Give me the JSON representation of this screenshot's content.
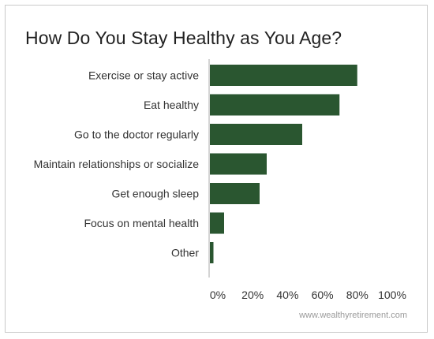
{
  "chart_data": {
    "type": "bar",
    "orientation": "horizontal",
    "title": "How Do You Stay Healthy as You Age?",
    "categories": [
      "Exercise or stay active",
      "Eat healthy",
      "Go to the doctor regularly",
      "Maintain relationships or socialize",
      "Get enough sleep",
      "Focus on mental health",
      "Other"
    ],
    "values": [
      83,
      73,
      52,
      32,
      28,
      8,
      2
    ],
    "x_ticks": [
      "0%",
      "20%",
      "40%",
      "60%",
      "80%",
      "100%"
    ],
    "xlim": [
      0,
      100
    ],
    "xlabel": "",
    "ylabel": "",
    "grid": false,
    "legend": "none",
    "bar_color": "#2a5630"
  },
  "source": "www.wealthyretirement.com",
  "colors": {
    "bar": "#2a5630",
    "axis": "#aaaaaa",
    "label": "#333333",
    "source": "#9a9a9a"
  }
}
